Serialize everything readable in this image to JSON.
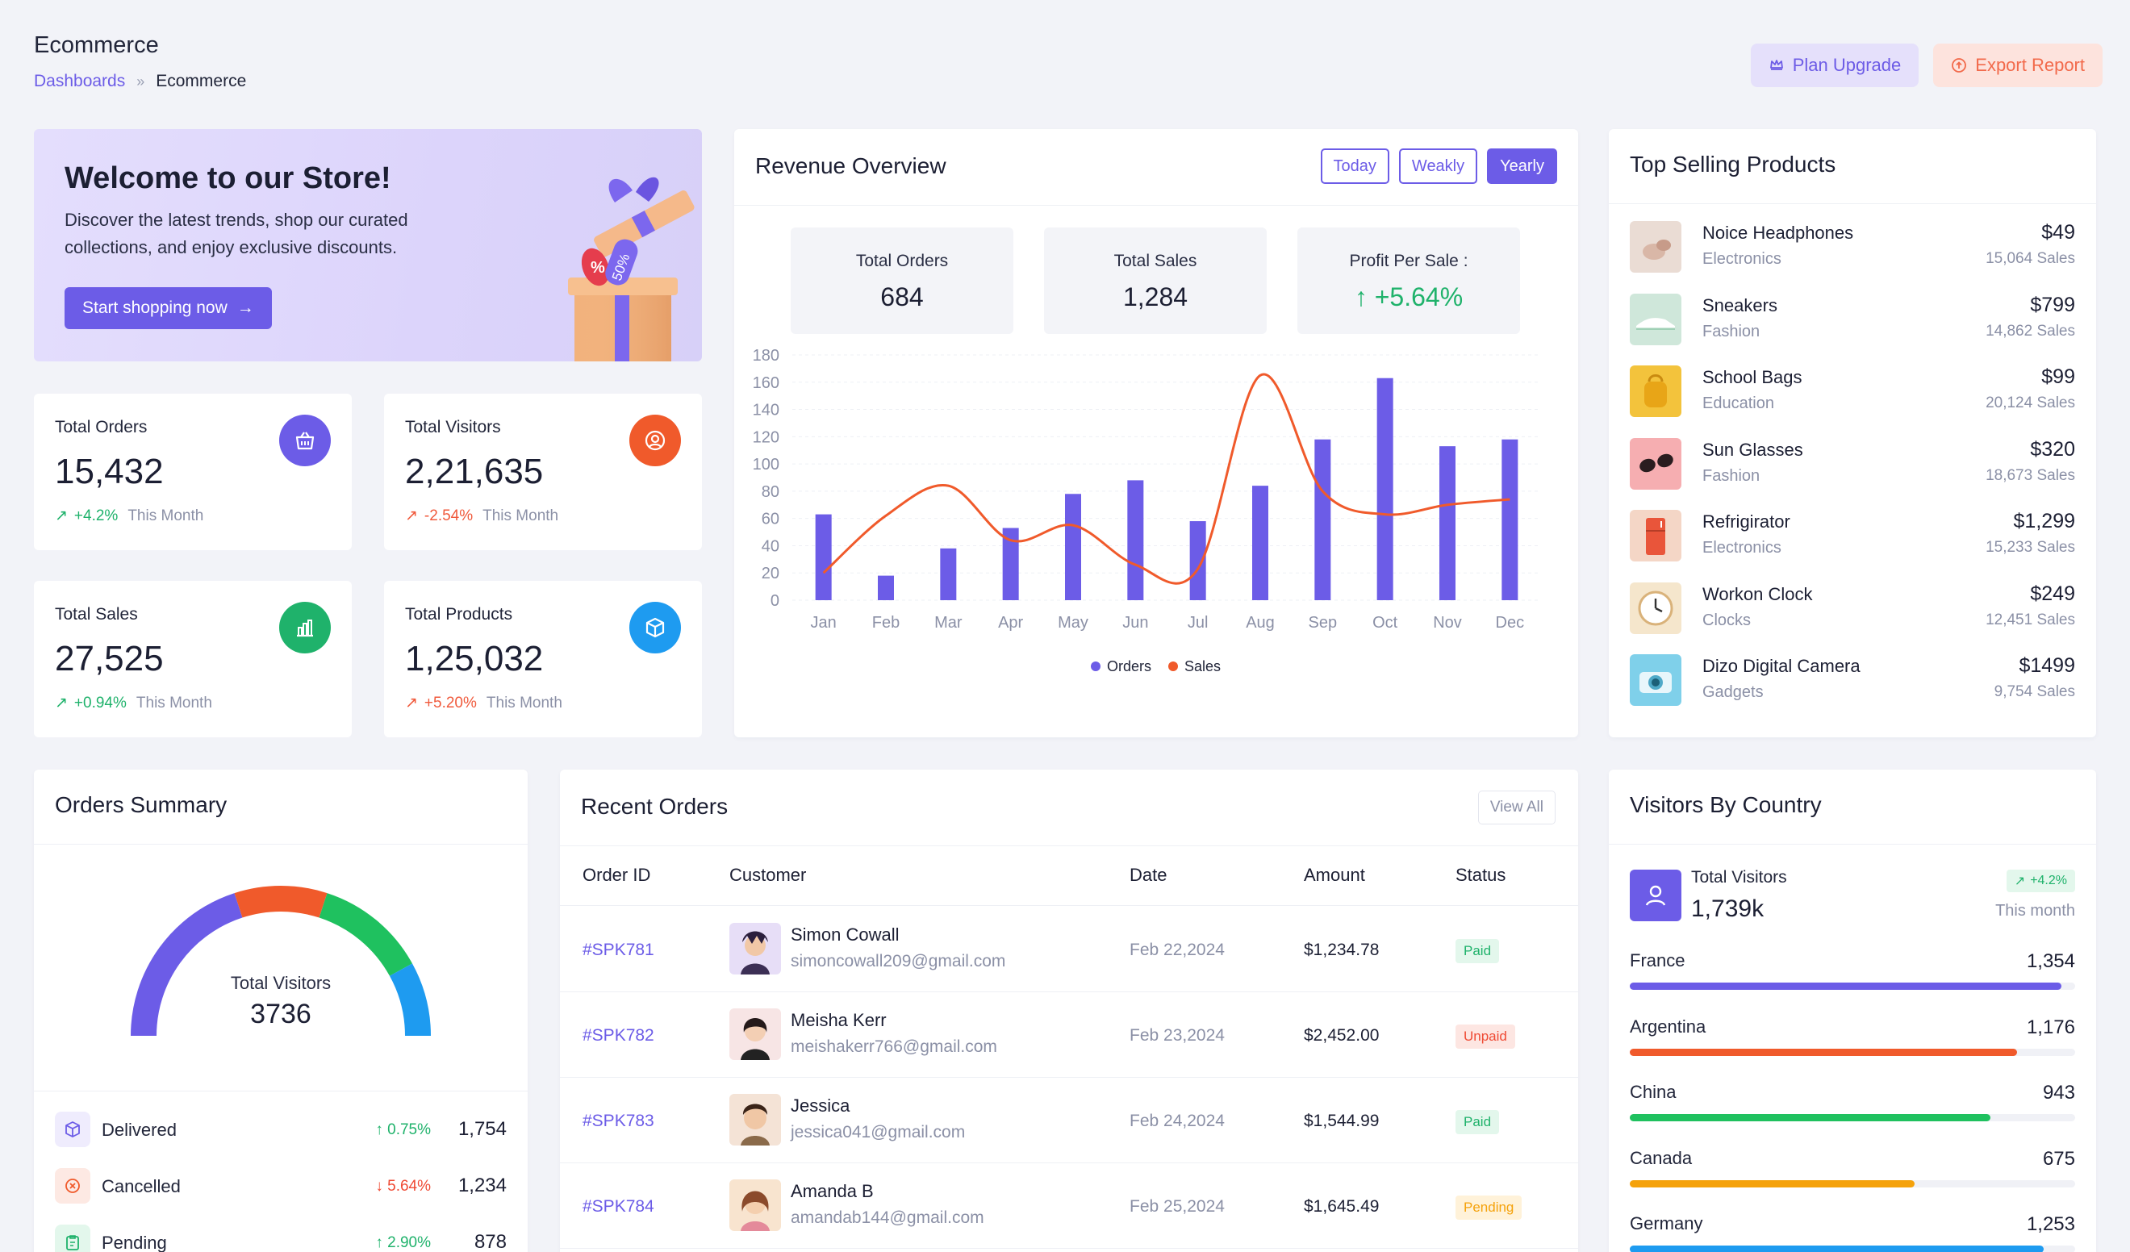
{
  "header": {
    "title": "Ecommerce",
    "breadcrumb": [
      "Dashboards",
      "Ecommerce"
    ],
    "plan_upgrade": "Plan Upgrade",
    "export_report": "Export Report"
  },
  "welcome": {
    "title": "Welcome to our Store!",
    "text": "Discover the latest trends, shop our curated collections, and enjoy exclusive discounts.",
    "button": "Start shopping now",
    "badge_text": "50%"
  },
  "stats": [
    {
      "label": "Total Orders",
      "value": "15,432",
      "change": "+4.2%",
      "period": "This Month",
      "trend": "up",
      "icon": "shopping-bag-icon",
      "color": "#6c5ce7"
    },
    {
      "label": "Total Visitors",
      "value": "2,21,635",
      "change": "-2.54%",
      "period": "This Month",
      "trend": "down",
      "icon": "user-circle-icon",
      "color": "#f05a2b"
    },
    {
      "label": "Total Sales",
      "value": "27,525",
      "change": "+0.94%",
      "period": "This Month",
      "trend": "up",
      "icon": "bar-chart-icon",
      "color": "#1fb26b"
    },
    {
      "label": "Total Products",
      "value": "1,25,032",
      "change": "+5.20%",
      "period": "This Month",
      "trend": "down",
      "icon": "box-icon",
      "color": "#1e9bf0"
    }
  ],
  "revenue": {
    "title": "Revenue Overview",
    "tabs": [
      "Today",
      "Weakly",
      "Yearly"
    ],
    "active_tab": "Yearly",
    "kpis": [
      {
        "label": "Total Orders",
        "value": "684"
      },
      {
        "label": "Total Sales",
        "value": "1,284"
      },
      {
        "label": "Profit Per Sale :",
        "value": "+5.64%"
      }
    ]
  },
  "chart_data": {
    "type": "bar",
    "categories": [
      "Jan",
      "Feb",
      "Mar",
      "Apr",
      "May",
      "Jun",
      "Jul",
      "Aug",
      "Sep",
      "Oct",
      "Nov",
      "Dec"
    ],
    "series": [
      {
        "name": "Orders",
        "type": "bar",
        "color": "#6c5ce7",
        "values": [
          63,
          18,
          38,
          53,
          78,
          88,
          58,
          84,
          118,
          163,
          113,
          118
        ]
      },
      {
        "name": "Sales",
        "type": "line",
        "color": "#f05a2b",
        "values": [
          20,
          62,
          84,
          44,
          55,
          26,
          23,
          165,
          80,
          63,
          70,
          74
        ]
      }
    ],
    "ylim": [
      0,
      180
    ],
    "yticks": [
      0,
      20,
      40,
      60,
      80,
      100,
      120,
      140,
      160,
      180
    ],
    "grid": true,
    "legend": "bottom"
  },
  "top_selling": {
    "title": "Top Selling Products",
    "items": [
      {
        "name": "Noice Headphones",
        "category": "Electronics",
        "price": "$49",
        "sales": "15,064 Sales",
        "thumb": "headphones"
      },
      {
        "name": "Sneakers",
        "category": "Fashion",
        "price": "$799",
        "sales": "14,862 Sales",
        "thumb": "sneakers"
      },
      {
        "name": "School Bags",
        "category": "Education",
        "price": "$99",
        "sales": "20,124 Sales",
        "thumb": "bag"
      },
      {
        "name": "Sun Glasses",
        "category": "Fashion",
        "price": "$320",
        "sales": "18,673 Sales",
        "thumb": "glasses"
      },
      {
        "name": "Refrigirator",
        "category": "Electronics",
        "price": "$1,299",
        "sales": "15,233 Sales",
        "thumb": "fridge"
      },
      {
        "name": "Workon Clock",
        "category": "Clocks",
        "price": "$249",
        "sales": "12,451 Sales",
        "thumb": "clock"
      },
      {
        "name": "Dizo Digital Camera",
        "category": "Gadgets",
        "price": "$1499",
        "sales": "9,754 Sales",
        "thumb": "camera"
      }
    ]
  },
  "orders_summary": {
    "title": "Orders Summary",
    "gauge_label": "Total Visitors",
    "gauge_value": "3736",
    "segments": [
      {
        "color": "#6c5ce7",
        "share": 0.4
      },
      {
        "color": "#f05a2b",
        "share": 0.2
      },
      {
        "color": "#1fc15f",
        "share": 0.24
      },
      {
        "color": "#1e9bf0",
        "share": 0.16
      }
    ],
    "rows": [
      {
        "label": "Delivered",
        "pct": "0.75%",
        "trend": "up",
        "value": "1,754",
        "icon": "box-icon",
        "color": "#6c5ce7",
        "bg": "#efecfd"
      },
      {
        "label": "Cancelled",
        "pct": "5.64%",
        "trend": "down",
        "value": "1,234",
        "icon": "close-circle-icon",
        "color": "#f05a2b",
        "bg": "#fde9e3"
      },
      {
        "label": "Pending",
        "pct": "2.90%",
        "trend": "up",
        "value": "878",
        "icon": "clipboard-icon",
        "color": "#1fb26b",
        "bg": "#e3f7ec"
      }
    ]
  },
  "recent_orders": {
    "title": "Recent Orders",
    "view_all": "View All",
    "columns": [
      "Order ID",
      "Customer",
      "Date",
      "Amount",
      "Status"
    ],
    "rows": [
      {
        "id": "#SPK781",
        "name": "Simon Cowall",
        "email": "simoncowall209@gmail.com",
        "date": "Feb 22,2024",
        "amount": "$1,234.78",
        "status": "Paid",
        "status_class": "paid",
        "avatar": "a1"
      },
      {
        "id": "#SPK782",
        "name": "Meisha Kerr",
        "email": "meishakerr766@gmail.com",
        "date": "Feb 23,2024",
        "amount": "$2,452.00",
        "status": "Unpaid",
        "status_class": "unpaid",
        "avatar": "a2"
      },
      {
        "id": "#SPK783",
        "name": "Jessica",
        "email": "jessica041@gmail.com",
        "date": "Feb 24,2024",
        "amount": "$1,544.99",
        "status": "Paid",
        "status_class": "paid",
        "avatar": "a3"
      },
      {
        "id": "#SPK784",
        "name": "Amanda B",
        "email": "amandab144@gmail.com",
        "date": "Feb 25,2024",
        "amount": "$1,645.49",
        "status": "Pending",
        "status_class": "pending",
        "avatar": "a4"
      }
    ]
  },
  "visitors": {
    "title": "Visitors By Country",
    "label": "Total Visitors",
    "value": "1,739k",
    "badge": "+4.2%",
    "period": "This month",
    "countries": [
      {
        "name": "France",
        "value": "1,354",
        "fraction": 0.97,
        "color": "#6c5ce7"
      },
      {
        "name": "Argentina",
        "value": "1,176",
        "fraction": 0.87,
        "color": "#f05a2b"
      },
      {
        "name": "China",
        "value": "943",
        "fraction": 0.81,
        "color": "#1fc15f"
      },
      {
        "name": "Canada",
        "value": "675",
        "fraction": 0.64,
        "color": "#f5a20b"
      },
      {
        "name": "Germany",
        "value": "1,253",
        "fraction": 0.93,
        "color": "#1e9bf0"
      }
    ]
  }
}
